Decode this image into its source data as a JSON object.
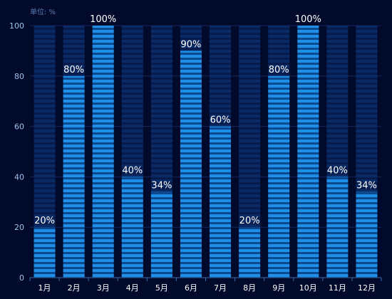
{
  "chart_data": {
    "type": "bar",
    "unit_label": "单位: %",
    "categories": [
      "1月",
      "2月",
      "3月",
      "4月",
      "5月",
      "6月",
      "7月",
      "8月",
      "9月",
      "10月",
      "11月",
      "12月"
    ],
    "values": [
      20,
      80,
      100,
      40,
      34,
      90,
      60,
      20,
      80,
      100,
      40,
      34
    ],
    "data_labels": [
      "20%",
      "80%",
      "100%",
      "40%",
      "34%",
      "90%",
      "60%",
      "20%",
      "80%",
      "100%",
      "40%",
      "34%"
    ],
    "ylim": [
      0,
      100
    ],
    "yticks": [
      0,
      20,
      40,
      60,
      80,
      100
    ],
    "ytick_labels": [
      "0",
      "20",
      "40",
      "60",
      "80",
      "100"
    ],
    "grid": true,
    "colors": {
      "background": "#020a2b",
      "bar_fill": "#1f8ee6",
      "bar_stripe": "#0b4a91",
      "track_fill": "#0a2a66",
      "track_stripe": "#071c4c",
      "axis": "#3a6aa8",
      "grid": "#15275a",
      "tick_text": "#9fc2ea",
      "label_text": "#ffffff"
    }
  }
}
